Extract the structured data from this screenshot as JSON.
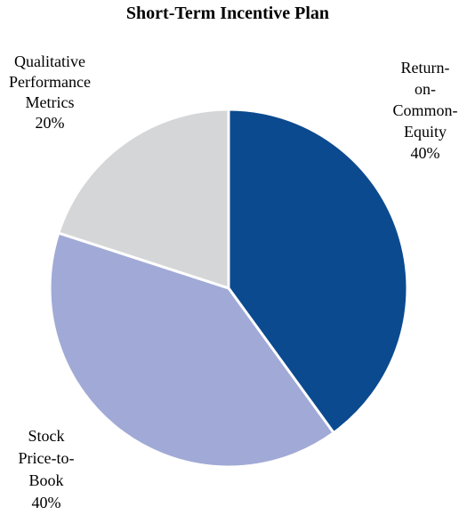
{
  "chart_data": {
    "type": "pie",
    "title": "Short-Term Incentive Plan",
    "slices": [
      {
        "label_lines": [
          "Return-",
          "on-",
          "Common-",
          "Equity"
        ],
        "value": 40,
        "value_label": "40%",
        "color": "#0b4a8f"
      },
      {
        "label_lines": [
          "Stock",
          "Price-to-",
          "Book"
        ],
        "value": 40,
        "value_label": "40%",
        "color": "#a1aad6"
      },
      {
        "label_lines": [
          "Qualitative",
          "Performance",
          "Metrics"
        ],
        "value": 20,
        "value_label": "20%",
        "color": "#d5d6d8"
      }
    ],
    "start": "12 o'clock",
    "direction": "clockwise",
    "legend": "none"
  }
}
